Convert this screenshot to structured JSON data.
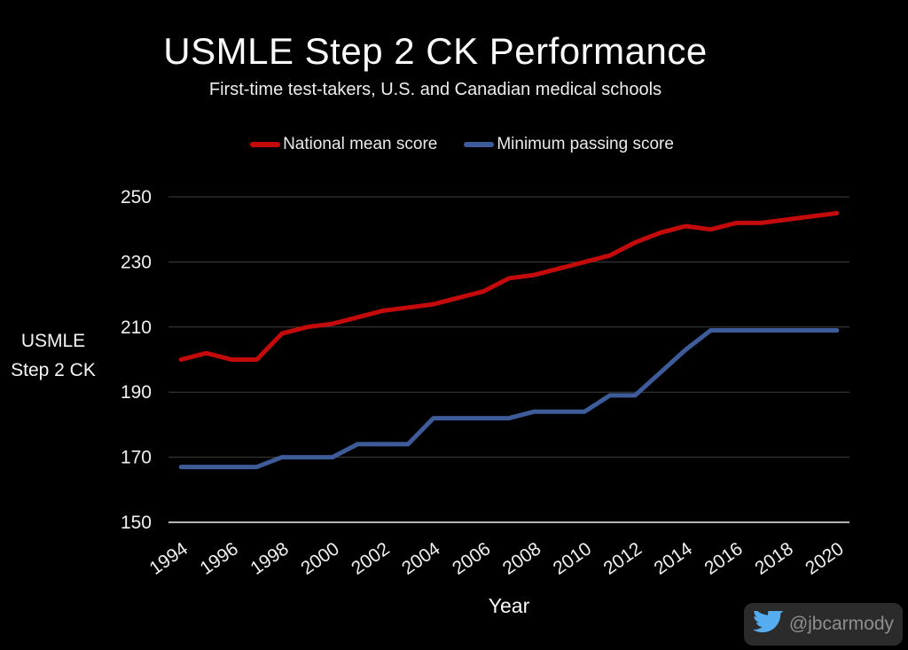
{
  "title": "USMLE Step 2 CK Performance",
  "subtitle": "First-time test-takers, U.S. and Canadian medical schools",
  "legend": [
    {
      "label": "National mean score",
      "color": "#c40a0a"
    },
    {
      "label": "Minimum passing score",
      "color": "#3e5c9a"
    }
  ],
  "axis": {
    "y_title_line1": "USMLE",
    "y_title_line2": "Step 2 CK",
    "x_title": "Year"
  },
  "credit": {
    "handle": "@jbcarmody",
    "icon": "twitter-bird-icon"
  },
  "colors": {
    "background": "#000000",
    "text": "#f0f0f0",
    "grid": "#404040",
    "axis_line": "#b3b3b3",
    "national_mean": "#c40a0a",
    "minimum_passing": "#3e5c9a",
    "twitter_blue": "#55acee",
    "credit_text": "#8e8e8e",
    "credit_bg": "#2b2b2b"
  },
  "chart_data": {
    "type": "line",
    "title": "USMLE Step 2 CK Performance",
    "subtitle": "First-time test-takers, U.S. and Canadian medical schools",
    "xlabel": "Year",
    "ylabel": "USMLE Step 2 CK",
    "grid": "horizontal",
    "legend_position": "top",
    "ylim": [
      150,
      250
    ],
    "y_ticks": [
      150,
      170,
      190,
      210,
      230,
      250
    ],
    "x_tick_years": [
      1994,
      1996,
      1998,
      2000,
      2002,
      2004,
      2006,
      2008,
      2010,
      2012,
      2014,
      2016,
      2018,
      2020
    ],
    "x": [
      1994,
      1995,
      1996,
      1997,
      1998,
      1999,
      2000,
      2001,
      2002,
      2003,
      2004,
      2005,
      2006,
      2007,
      2008,
      2009,
      2010,
      2011,
      2012,
      2013,
      2014,
      2015,
      2016,
      2017,
      2018,
      2019,
      2020
    ],
    "series": [
      {
        "id": "national-mean",
        "name": "National mean score",
        "color": "#c40a0a",
        "values": [
          200,
          202,
          200,
          200,
          208,
          210,
          211,
          213,
          215,
          216,
          217,
          219,
          221,
          225,
          226,
          228,
          230,
          232,
          236,
          239,
          241,
          240,
          242,
          242,
          243,
          244,
          245
        ]
      },
      {
        "id": "minimum-passing",
        "name": "Minimum passing score",
        "color": "#3e5c9a",
        "values": [
          167,
          167,
          167,
          167,
          170,
          170,
          170,
          174,
          174,
          174,
          182,
          182,
          182,
          182,
          184,
          184,
          184,
          189,
          189,
          196,
          203,
          209,
          209,
          209,
          209,
          209,
          209
        ]
      }
    ]
  }
}
